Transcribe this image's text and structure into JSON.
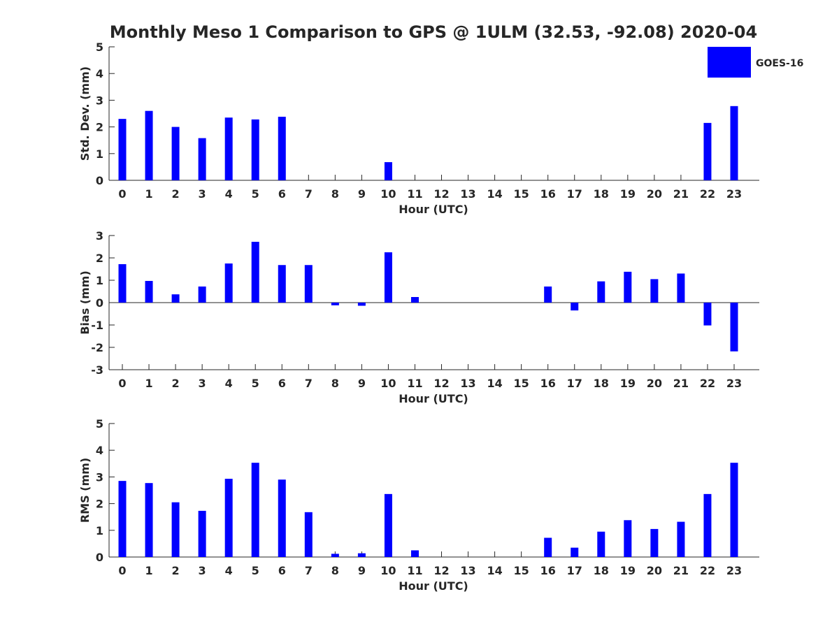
{
  "chart_data": {
    "title": "Monthly Meso 1 Comparison to GPS @ 1ULM (32.53, -92.08) 2020-04",
    "legend": {
      "label": "GOES-16",
      "color": "#0000ff",
      "placement": "top-right"
    },
    "bar_color": "#0000ff",
    "xlabel": "Hour (UTC)",
    "categories": [
      "0",
      "1",
      "2",
      "3",
      "4",
      "5",
      "6",
      "7",
      "8",
      "9",
      "10",
      "11",
      "12",
      "13",
      "14",
      "15",
      "16",
      "17",
      "18",
      "19",
      "20",
      "21",
      "22",
      "23"
    ],
    "panels": [
      {
        "type": "bar",
        "ylabel": "Std. Dev. (mm)",
        "ylim": [
          0,
          5
        ],
        "yticks": [
          "0",
          "1",
          "2",
          "3",
          "4",
          "5"
        ],
        "values": [
          2.3,
          2.6,
          2.0,
          1.58,
          2.35,
          2.28,
          2.38,
          null,
          null,
          null,
          0.68,
          null,
          null,
          null,
          null,
          null,
          null,
          null,
          null,
          null,
          null,
          null,
          2.15,
          2.78
        ]
      },
      {
        "type": "bar",
        "ylabel": "Bias (mm)",
        "ylim": [
          -3,
          3
        ],
        "yticks": [
          "-3",
          "-2",
          "-1",
          "0",
          "1",
          "2",
          "3"
        ],
        "values": [
          1.72,
          0.97,
          0.37,
          0.72,
          1.75,
          2.72,
          1.68,
          1.68,
          -0.12,
          -0.14,
          2.25,
          0.25,
          null,
          null,
          null,
          null,
          0.72,
          -0.35,
          0.95,
          1.38,
          1.05,
          1.3,
          -1.02,
          -2.18
        ]
      },
      {
        "type": "bar",
        "ylabel": "RMS (mm)",
        "ylim": [
          0,
          5
        ],
        "yticks": [
          "0",
          "1",
          "2",
          "3",
          "4",
          "5"
        ],
        "values": [
          2.85,
          2.77,
          2.05,
          1.73,
          2.93,
          3.53,
          2.9,
          1.68,
          0.12,
          0.14,
          2.36,
          0.25,
          null,
          null,
          null,
          null,
          0.72,
          0.35,
          0.95,
          1.38,
          1.05,
          1.32,
          2.36,
          3.53
        ]
      }
    ]
  }
}
